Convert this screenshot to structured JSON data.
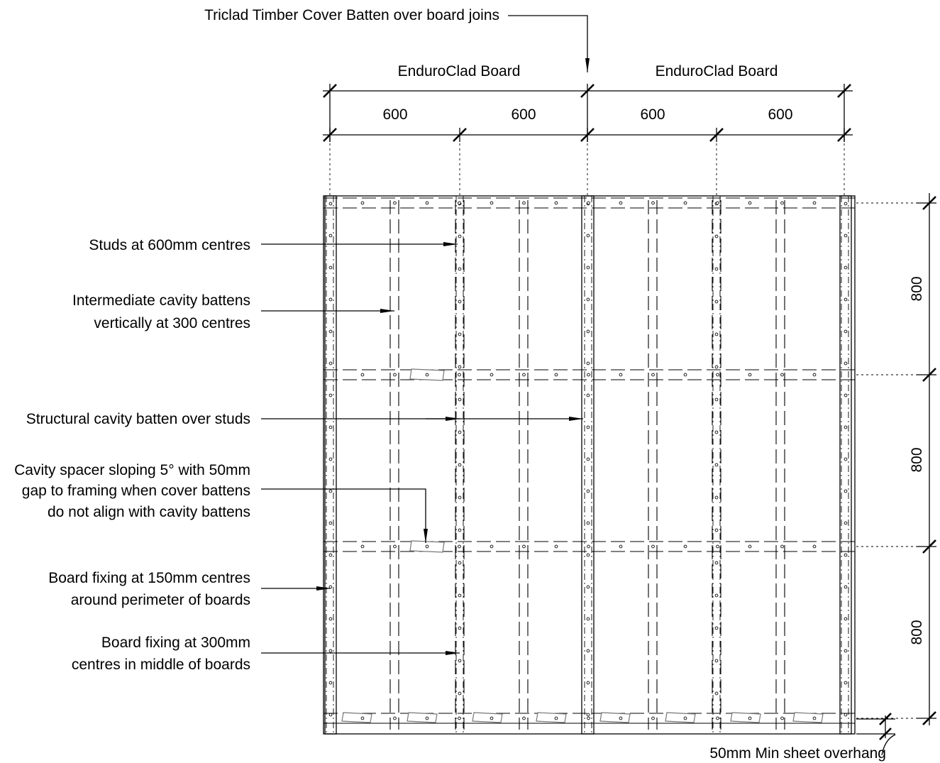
{
  "top_callout": "Triclad Timber Cover Batten over board joins",
  "boards": [
    {
      "label": "EnduroClad Board"
    },
    {
      "label": "EnduroClad Board"
    }
  ],
  "horizontal_dims": [
    "600",
    "600",
    "600",
    "600"
  ],
  "vertical_dims": [
    "800",
    "800",
    "800"
  ],
  "callouts": {
    "studs": [
      "Studs at 600mm centres"
    ],
    "intermediate": [
      "Intermediate cavity battens",
      "vertically at 300 centres"
    ],
    "structural": [
      "Structural cavity batten over studs"
    ],
    "spacer": [
      "Cavity spacer sloping 5° with 50mm",
      "gap to framing when cover battens",
      "do not align with cavity battens"
    ],
    "perimeter_fixing": [
      "Board fixing at 150mm centres",
      "around perimeter of boards"
    ],
    "middle_fixing": [
      "Board fixing at 300mm",
      "centres in middle of boards"
    ]
  },
  "overhang_label": "50mm Min sheet overhang"
}
